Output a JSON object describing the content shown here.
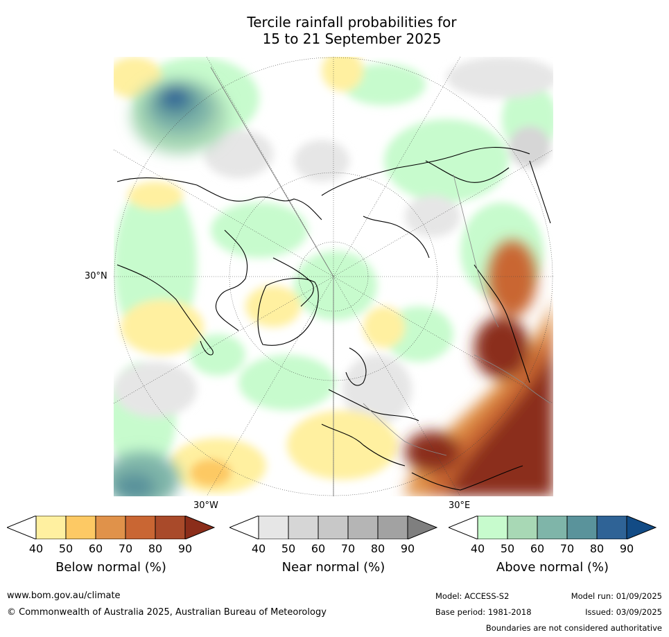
{
  "title": {
    "line1": "Tercile rainfall probabilities for",
    "line2": "15 to 21 September 2025"
  },
  "map": {
    "lat_label": "30°N",
    "lon_label_left": "30°W",
    "lon_label_right": "30°E",
    "colors": {
      "below": [
        "#fff0a0",
        "#fdc964",
        "#e0924a",
        "#c96633",
        "#a94a2a",
        "#8b2d1a"
      ],
      "near": [
        "#e6e6e6",
        "#d6d6d6",
        "#c8c8c8",
        "#b5b5b5",
        "#a2a2a2",
        "#7f7f7f"
      ],
      "above": [
        "#c7fbcd",
        "#a8d8b5",
        "#7fb5a9",
        "#5a939b",
        "#2f6396",
        "#124b85"
      ]
    }
  },
  "colorbars": [
    {
      "label": "Below normal (%)",
      "ticks": [
        "40",
        "50",
        "60",
        "70",
        "80",
        "90"
      ]
    },
    {
      "label": "Near normal (%)",
      "ticks": [
        "40",
        "50",
        "60",
        "70",
        "80",
        "90"
      ]
    },
    {
      "label": "Above normal (%)",
      "ticks": [
        "40",
        "50",
        "60",
        "70",
        "80",
        "90"
      ]
    }
  ],
  "footer": {
    "url": "www.bom.gov.au/climate",
    "copyright": "© Commonwealth of Australia 2025, Australian Bureau of Meteorology",
    "model": "Model: ACCESS-S2",
    "model_run": "Model run: 01/09/2025",
    "base_period": "Base period: 1981-2018",
    "issued": "Issued: 03/09/2025",
    "disclaimer": "Boundaries are not considered authoritative"
  }
}
